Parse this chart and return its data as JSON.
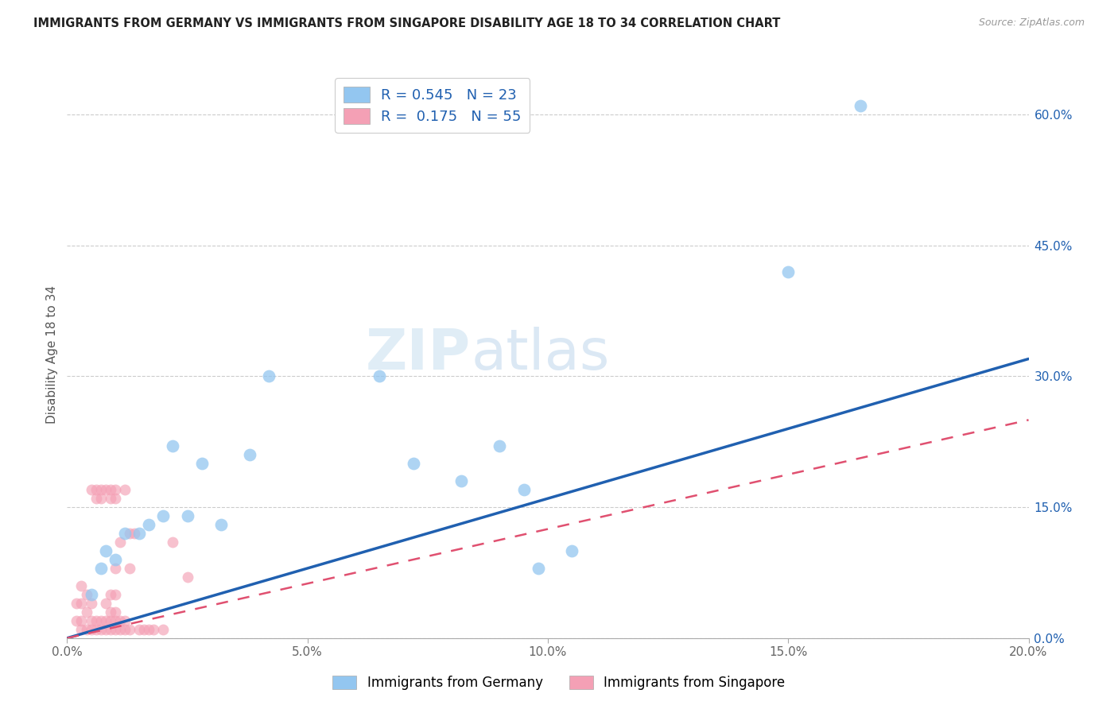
{
  "title": "IMMIGRANTS FROM GERMANY VS IMMIGRANTS FROM SINGAPORE DISABILITY AGE 18 TO 34 CORRELATION CHART",
  "source": "Source: ZipAtlas.com",
  "ylabel": "Disability Age 18 to 34",
  "xlim": [
    0.0,
    0.2
  ],
  "ylim": [
    0.0,
    0.65
  ],
  "xticks": [
    0.0,
    0.05,
    0.1,
    0.15,
    0.2
  ],
  "xtick_labels": [
    "0.0%",
    "5.0%",
    "10.0%",
    "15.0%",
    "20.0%"
  ],
  "yticks": [
    0.0,
    0.15,
    0.3,
    0.45,
    0.6
  ],
  "ytick_labels": [
    "0.0%",
    "15.0%",
    "30.0%",
    "45.0%",
    "60.0%"
  ],
  "germany_R": 0.545,
  "germany_N": 23,
  "singapore_R": 0.175,
  "singapore_N": 55,
  "germany_color": "#93c6f0",
  "singapore_color": "#f4a0b5",
  "germany_line_color": "#2060b0",
  "singapore_line_color": "#e05070",
  "germany_x": [
    0.005,
    0.007,
    0.008,
    0.01,
    0.012,
    0.015,
    0.017,
    0.02,
    0.022,
    0.025,
    0.028,
    0.032,
    0.038,
    0.042,
    0.065,
    0.072,
    0.082,
    0.09,
    0.095,
    0.098,
    0.105,
    0.15,
    0.165
  ],
  "germany_y": [
    0.05,
    0.08,
    0.1,
    0.09,
    0.12,
    0.12,
    0.13,
    0.14,
    0.22,
    0.14,
    0.2,
    0.13,
    0.21,
    0.3,
    0.3,
    0.2,
    0.18,
    0.22,
    0.17,
    0.08,
    0.1,
    0.42,
    0.61
  ],
  "singapore_x": [
    0.002,
    0.002,
    0.003,
    0.003,
    0.003,
    0.003,
    0.004,
    0.004,
    0.004,
    0.005,
    0.005,
    0.005,
    0.005,
    0.006,
    0.006,
    0.006,
    0.006,
    0.007,
    0.007,
    0.007,
    0.007,
    0.008,
    0.008,
    0.008,
    0.008,
    0.009,
    0.009,
    0.009,
    0.009,
    0.009,
    0.009,
    0.01,
    0.01,
    0.01,
    0.01,
    0.01,
    0.01,
    0.01,
    0.011,
    0.011,
    0.011,
    0.012,
    0.012,
    0.012,
    0.013,
    0.013,
    0.013,
    0.014,
    0.015,
    0.016,
    0.017,
    0.018,
    0.02,
    0.022,
    0.025
  ],
  "singapore_y": [
    0.02,
    0.04,
    0.01,
    0.02,
    0.04,
    0.06,
    0.01,
    0.03,
    0.05,
    0.01,
    0.02,
    0.04,
    0.17,
    0.01,
    0.02,
    0.16,
    0.17,
    0.01,
    0.02,
    0.16,
    0.17,
    0.01,
    0.02,
    0.04,
    0.17,
    0.01,
    0.02,
    0.03,
    0.05,
    0.16,
    0.17,
    0.01,
    0.02,
    0.03,
    0.05,
    0.08,
    0.16,
    0.17,
    0.01,
    0.02,
    0.11,
    0.01,
    0.02,
    0.17,
    0.01,
    0.08,
    0.12,
    0.12,
    0.01,
    0.01,
    0.01,
    0.01,
    0.01,
    0.11,
    0.07
  ],
  "watermark_zip": "ZIP",
  "watermark_atlas": "atlas",
  "marker_size_germany": 130,
  "marker_size_singapore": 100
}
